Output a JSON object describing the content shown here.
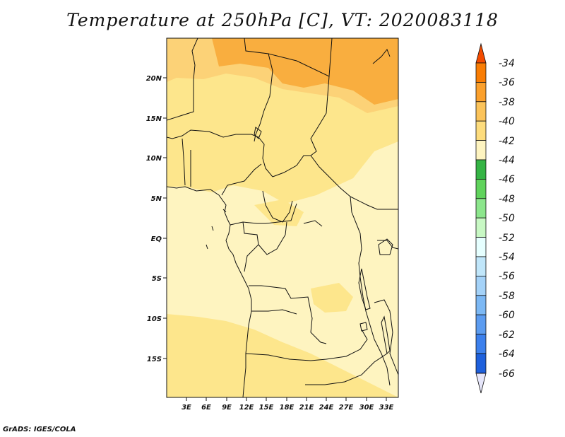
{
  "title": "Temperature at 250hPa [C], VT: 2020083118",
  "credit": "GrADS: IGES/COLA",
  "map": {
    "lat_labels": [
      "20N",
      "15N",
      "10N",
      "5N",
      "EQ",
      "5S",
      "10S",
      "15S"
    ],
    "lon_labels": [
      "3E",
      "6E",
      "9E",
      "12E",
      "15E",
      "18E",
      "21E",
      "24E",
      "27E",
      "30E",
      "33E"
    ],
    "colors": {
      "field_min": "#fef4c0",
      "field_mid": "#fde68c",
      "field_hi": "#fcd277",
      "field_max": "#f9ae3f"
    }
  },
  "colorbar": {
    "labels": [
      "-34",
      "-36",
      "-38",
      "-40",
      "-42",
      "-44",
      "-46",
      "-48",
      "-50",
      "-52",
      "-54",
      "-56",
      "-58",
      "-60",
      "-62",
      "-64",
      "-66"
    ],
    "colors": [
      "#f34b00",
      "#f97d04",
      "#fba02c",
      "#fbc35a",
      "#fddc7d",
      "#fef4c0",
      "#35b445",
      "#60d35c",
      "#8ce68c",
      "#c8f8c4",
      "#e6ffff",
      "#c0e6fa",
      "#a4d2f8",
      "#7cb8f4",
      "#5c9cf0",
      "#3c80ec",
      "#1e60dc",
      "#0e3cbc",
      "#0e1480",
      "#e6e6fa"
    ]
  }
}
